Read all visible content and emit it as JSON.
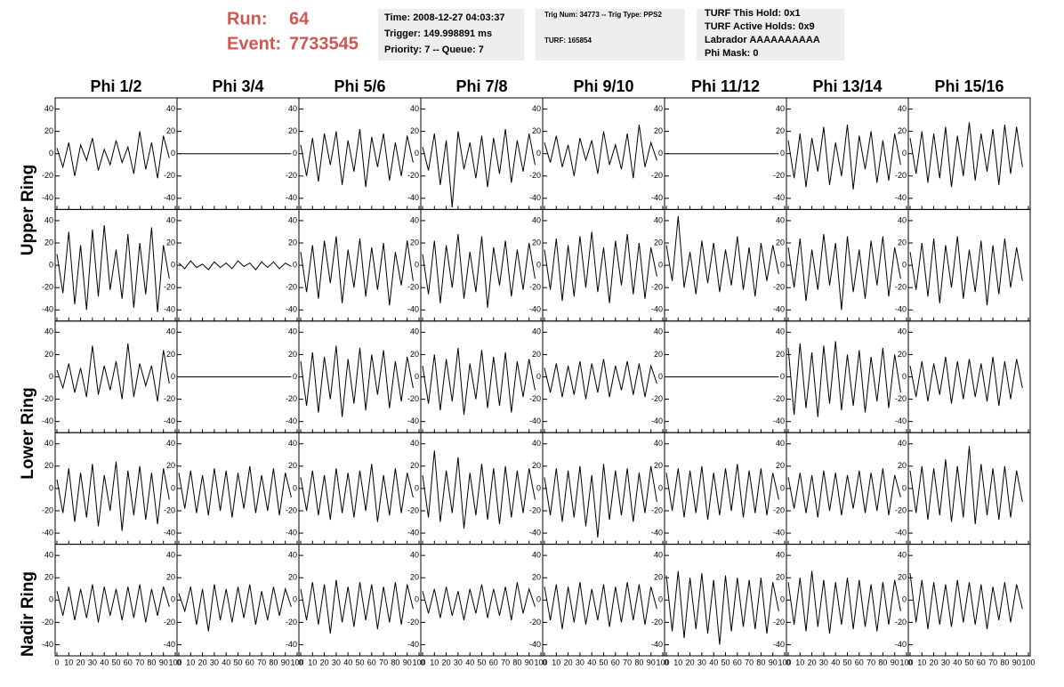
{
  "header": {
    "run_label": "Run:",
    "run": "64",
    "event_label": "Event:",
    "event": "7733545",
    "box1": [
      "Time: 2008-12-27 04:03:37",
      "Trigger: 149.998891 ms",
      "Priority: 7 -- Queue: 7"
    ],
    "box2": [
      "Trig Num: 34773 -- Trig Type: PPS2",
      "TURF: 165854"
    ],
    "box3": [
      "TURF This Hold: 0x1",
      "TURF Active Holds: 0x9",
      "Labrador AAAAAAAAAA",
      "Phi Mask: 0"
    ]
  },
  "columns": [
    "Phi 1/2",
    "Phi 3/4",
    "Phi 5/6",
    "Phi 7/8",
    "Phi 9/10",
    "Phi 11/12",
    "Phi 13/14",
    "Phi 15/16"
  ],
  "rows": [
    "Upper Ring",
    "Lower Ring",
    "Nadir Ring"
  ],
  "axes": {
    "xlim": [
      0,
      100
    ],
    "xticks": [
      0,
      10,
      20,
      30,
      40,
      50,
      60,
      70,
      80,
      90,
      100
    ],
    "ylim": [
      -50,
      50
    ],
    "yticks": [
      -40,
      -20,
      0,
      20,
      40
    ],
    "color": "#000000"
  },
  "x": [
    0,
    5,
    10,
    15,
    20,
    25,
    30,
    35,
    40,
    45,
    50,
    55,
    60,
    65,
    70,
    75,
    80,
    85,
    90,
    95
  ],
  "chart_data": [
    {
      "type": "line",
      "values": [
        5,
        -12,
        10,
        -20,
        8,
        -6,
        14,
        -15,
        4,
        -10,
        12,
        -8,
        6,
        -18,
        20,
        -14,
        10,
        -22,
        16,
        -4
      ]
    },
    {
      "type": "line",
      "values": [
        0,
        0,
        0,
        0,
        0,
        0,
        0,
        0,
        0,
        0,
        0,
        0,
        0,
        0,
        0,
        0,
        0,
        0,
        0,
        0
      ]
    },
    {
      "type": "line",
      "values": [
        8,
        -20,
        14,
        -25,
        18,
        -10,
        20,
        -28,
        12,
        -16,
        22,
        -30,
        15,
        -12,
        18,
        -24,
        10,
        -20,
        16,
        -8
      ]
    },
    {
      "type": "line",
      "values": [
        6,
        -15,
        18,
        -28,
        12,
        -48,
        20,
        -14,
        10,
        -22,
        16,
        -30,
        14,
        -18,
        22,
        -26,
        12,
        -16,
        18,
        -10
      ]
    },
    {
      "type": "line",
      "values": [
        10,
        -8,
        16,
        -12,
        8,
        -20,
        14,
        -6,
        12,
        -18,
        20,
        -10,
        8,
        -14,
        18,
        -22,
        26,
        -12,
        10,
        -6
      ]
    },
    {
      "type": "line",
      "values": [
        0,
        0,
        0,
        0,
        0,
        0,
        0,
        0,
        0,
        0,
        0,
        0,
        0,
        0,
        0,
        0,
        0,
        0,
        0,
        0
      ]
    },
    {
      "type": "line",
      "values": [
        12,
        -22,
        18,
        -30,
        14,
        -16,
        24,
        -28,
        10,
        -20,
        26,
        -32,
        16,
        -14,
        20,
        -26,
        12,
        -24,
        18,
        -10
      ]
    },
    {
      "type": "line",
      "values": [
        14,
        -18,
        20,
        -26,
        18,
        -22,
        24,
        -30,
        16,
        -20,
        28,
        -24,
        18,
        -16,
        22,
        -28,
        26,
        -18,
        24,
        -12
      ]
    },
    {
      "type": "line",
      "values": [
        10,
        -25,
        30,
        -35,
        18,
        -40,
        32,
        -28,
        36,
        -22,
        14,
        -30,
        28,
        -38,
        20,
        -26,
        34,
        -42,
        18,
        -12
      ]
    },
    {
      "type": "line",
      "values": [
        2,
        -3,
        4,
        -2,
        1,
        -4,
        3,
        -2,
        2,
        -3,
        4,
        -1,
        2,
        -4,
        3,
        -2,
        3,
        -3,
        2,
        -1
      ]
    },
    {
      "type": "line",
      "values": [
        12,
        -24,
        18,
        -30,
        22,
        -16,
        26,
        -34,
        14,
        -20,
        24,
        -28,
        16,
        -22,
        20,
        -36,
        12,
        -18,
        22,
        -14
      ]
    },
    {
      "type": "line",
      "values": [
        10,
        -26,
        22,
        -34,
        18,
        -20,
        28,
        -30,
        12,
        -24,
        26,
        -38,
        16,
        -18,
        22,
        -28,
        14,
        -22,
        20,
        -12
      ]
    },
    {
      "type": "line",
      "values": [
        14,
        -22,
        24,
        -32,
        18,
        -28,
        26,
        -20,
        30,
        -24,
        16,
        -34,
        22,
        -18,
        28,
        -26,
        20,
        -30,
        16,
        -10
      ]
    },
    {
      "type": "line",
      "values": [
        18,
        -14,
        44,
        -20,
        12,
        -26,
        22,
        -16,
        20,
        -24,
        14,
        -18,
        26,
        -22,
        16,
        -28,
        20,
        -14,
        18,
        -8
      ]
    },
    {
      "type": "line",
      "values": [
        16,
        -20,
        24,
        -32,
        14,
        -22,
        28,
        -18,
        20,
        -40,
        26,
        -24,
        14,
        -30,
        22,
        -18,
        26,
        -28,
        16,
        -12
      ]
    },
    {
      "type": "line",
      "values": [
        12,
        -22,
        20,
        -28,
        24,
        -34,
        18,
        -20,
        26,
        -30,
        14,
        -24,
        22,
        -36,
        18,
        -26,
        24,
        -20,
        16,
        -14
      ]
    },
    {
      "type": "line",
      "values": [
        6,
        -10,
        12,
        -14,
        8,
        -18,
        28,
        -16,
        10,
        -12,
        14,
        -20,
        30,
        -18,
        12,
        -8,
        10,
        -22,
        24,
        -6
      ]
    },
    {
      "type": "line",
      "values": [
        0,
        0,
        0,
        0,
        0,
        0,
        0,
        0,
        0,
        0,
        0,
        0,
        0,
        0,
        0,
        0,
        0,
        0,
        0,
        0
      ]
    },
    {
      "type": "line",
      "values": [
        14,
        -26,
        22,
        -32,
        18,
        -20,
        28,
        -36,
        16,
        -24,
        26,
        -30,
        20,
        -16,
        24,
        -28,
        14,
        -22,
        18,
        -10
      ]
    },
    {
      "type": "line",
      "values": [
        10,
        -24,
        20,
        -30,
        16,
        -22,
        26,
        -34,
        12,
        -20,
        24,
        -28,
        18,
        -26,
        22,
        -32,
        14,
        -18,
        16,
        -12
      ]
    },
    {
      "type": "line",
      "values": [
        8,
        -14,
        12,
        -18,
        10,
        -16,
        14,
        -20,
        12,
        -14,
        16,
        -18,
        10,
        -12,
        14,
        -16,
        12,
        -18,
        10,
        -6
      ]
    },
    {
      "type": "line",
      "values": [
        0,
        0,
        0,
        0,
        0,
        0,
        0,
        0,
        0,
        0,
        0,
        0,
        0,
        0,
        0,
        0,
        0,
        0,
        0,
        0
      ]
    },
    {
      "type": "line",
      "values": [
        26,
        -34,
        30,
        -28,
        22,
        -36,
        28,
        -24,
        32,
        -30,
        20,
        -26,
        24,
        -32,
        18,
        -22,
        26,
        -28,
        20,
        -14
      ]
    },
    {
      "type": "line",
      "values": [
        10,
        -18,
        14,
        -22,
        12,
        -16,
        18,
        -24,
        14,
        -20,
        16,
        -18,
        12,
        -22,
        18,
        -26,
        14,
        -20,
        16,
        -10
      ]
    },
    {
      "type": "line",
      "values": [
        8,
        -22,
        18,
        -30,
        14,
        -26,
        22,
        -34,
        12,
        -20,
        24,
        -38,
        16,
        -24,
        20,
        -28,
        14,
        -32,
        18,
        -10
      ]
    },
    {
      "type": "line",
      "values": [
        14,
        -18,
        16,
        -22,
        12,
        -24,
        18,
        -20,
        16,
        -26,
        14,
        -18,
        20,
        -22,
        12,
        -20,
        18,
        -24,
        14,
        -8
      ]
    },
    {
      "type": "line",
      "values": [
        10,
        -20,
        16,
        -24,
        12,
        -28,
        18,
        -22,
        14,
        -26,
        16,
        -20,
        22,
        -30,
        12,
        -24,
        18,
        -22,
        14,
        -8
      ]
    },
    {
      "type": "line",
      "values": [
        12,
        -26,
        34,
        -30,
        16,
        -22,
        28,
        -36,
        14,
        -24,
        22,
        -28,
        18,
        -32,
        20,
        -26,
        16,
        -22,
        18,
        -10
      ]
    },
    {
      "type": "line",
      "values": [
        10,
        -24,
        18,
        -30,
        16,
        -26,
        20,
        -34,
        12,
        -44,
        22,
        -28,
        16,
        -24,
        18,
        -30,
        14,
        -22,
        20,
        -12
      ]
    },
    {
      "type": "line",
      "values": [
        14,
        -20,
        18,
        -26,
        16,
        -22,
        20,
        -28,
        14,
        -24,
        18,
        -20,
        22,
        -26,
        16,
        -22,
        18,
        -24,
        14,
        -10
      ]
    },
    {
      "type": "line",
      "values": [
        10,
        -18,
        14,
        -22,
        12,
        -26,
        16,
        -20,
        14,
        -24,
        12,
        -18,
        16,
        -22,
        14,
        -20,
        18,
        -24,
        12,
        -8
      ]
    },
    {
      "type": "line",
      "values": [
        16,
        -22,
        20,
        -28,
        18,
        -24,
        26,
        -30,
        20,
        -26,
        38,
        -32,
        22,
        -24,
        18,
        -28,
        20,
        -26,
        16,
        -12
      ]
    },
    {
      "type": "line",
      "values": [
        8,
        -14,
        12,
        -18,
        10,
        -16,
        14,
        -20,
        12,
        -14,
        10,
        -18,
        12,
        -16,
        14,
        -20,
        10,
        -14,
        12,
        -6
      ]
    },
    {
      "type": "line",
      "values": [
        6,
        -10,
        12,
        -22,
        10,
        -28,
        14,
        -18,
        10,
        -20,
        12,
        -16,
        14,
        -22,
        8,
        -18,
        12,
        -14,
        10,
        -6
      ]
    },
    {
      "type": "line",
      "values": [
        10,
        -18,
        16,
        -22,
        14,
        -30,
        18,
        -20,
        12,
        -24,
        16,
        -18,
        14,
        -26,
        12,
        -20,
        16,
        -22,
        14,
        -8
      ]
    },
    {
      "type": "line",
      "values": [
        8,
        -12,
        10,
        -16,
        12,
        -14,
        8,
        -18,
        10,
        -12,
        14,
        -16,
        10,
        -14,
        12,
        -18,
        16,
        -12,
        10,
        -6
      ]
    },
    {
      "type": "line",
      "values": [
        12,
        -18,
        14,
        -26,
        12,
        -20,
        16,
        -22,
        10,
        -18,
        14,
        -24,
        12,
        -20,
        16,
        -18,
        14,
        -22,
        12,
        -8
      ]
    },
    {
      "type": "line",
      "values": [
        22,
        -28,
        26,
        -34,
        20,
        -26,
        24,
        -30,
        18,
        -40,
        22,
        -28,
        20,
        -24,
        18,
        -26,
        20,
        -30,
        16,
        -10
      ]
    },
    {
      "type": "line",
      "values": [
        16,
        -22,
        20,
        -28,
        26,
        -24,
        18,
        -30,
        16,
        -22,
        20,
        -26,
        18,
        -24,
        14,
        -28,
        16,
        -22,
        18,
        -10
      ]
    },
    {
      "type": "line",
      "values": [
        24,
        -20,
        18,
        -26,
        16,
        -22,
        14,
        -24,
        18,
        -20,
        16,
        -22,
        14,
        -26,
        12,
        -18,
        16,
        -20,
        14,
        -8
      ]
    }
  ]
}
